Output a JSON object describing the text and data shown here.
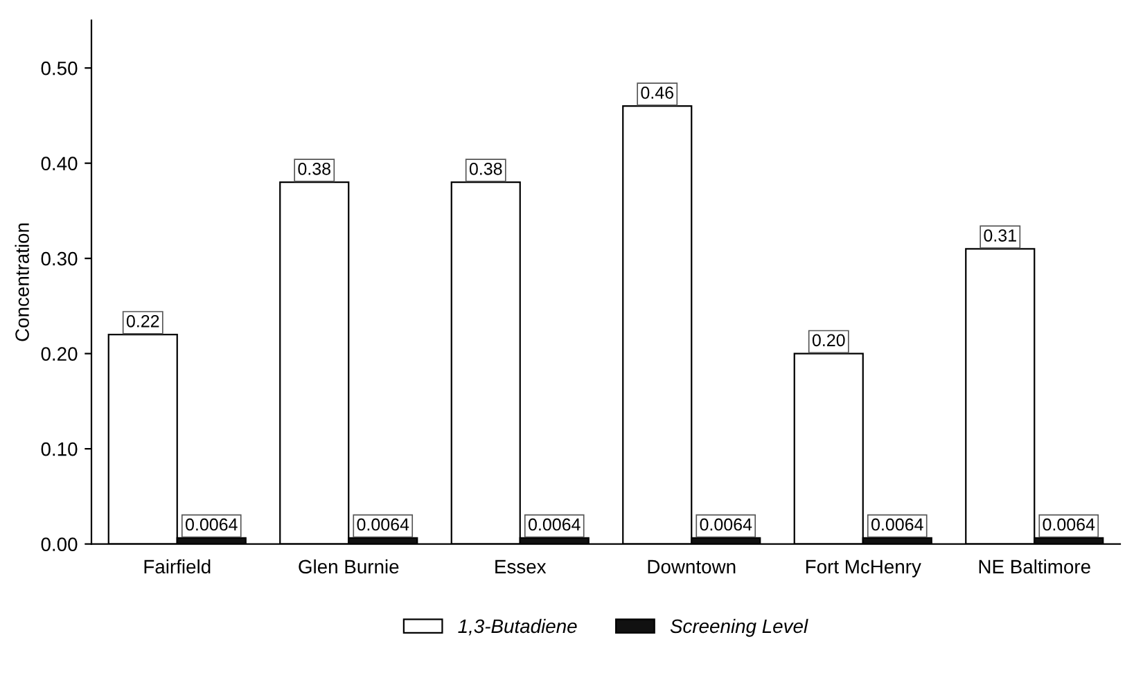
{
  "chart_data": {
    "type": "bar",
    "ylabel": "Concentration",
    "categories": [
      "Fairfield",
      "Glen Burnie",
      "Essex",
      "Downtown",
      "Fort McHenry",
      "NE Baltimore"
    ],
    "series": [
      {
        "name": "1,3-Butadiene",
        "color": "#ffffff",
        "values": [
          0.22,
          0.38,
          0.38,
          0.46,
          0.2,
          0.31
        ],
        "value_labels": [
          "0.22",
          "0.38",
          "0.38",
          "0.46",
          "0.20",
          "0.31"
        ]
      },
      {
        "name": "Screening Level",
        "color": "#111111",
        "values": [
          0.0064,
          0.0064,
          0.0064,
          0.0064,
          0.0064,
          0.0064
        ],
        "value_labels": [
          "0.0064",
          "0.0064",
          "0.0064",
          "0.0064",
          "0.0064",
          "0.0064"
        ]
      }
    ],
    "ylim": [
      0,
      0.55
    ],
    "yticks": [
      {
        "value": 0,
        "label": "0.00"
      },
      {
        "value": 0.1,
        "label": "0.10"
      },
      {
        "value": 0.2,
        "label": "0.20"
      },
      {
        "value": 0.3,
        "label": "0.30"
      },
      {
        "value": 0.4,
        "label": "0.40"
      },
      {
        "value": 0.5,
        "label": "0.50"
      }
    ],
    "grid": false,
    "legend": "bottom"
  }
}
